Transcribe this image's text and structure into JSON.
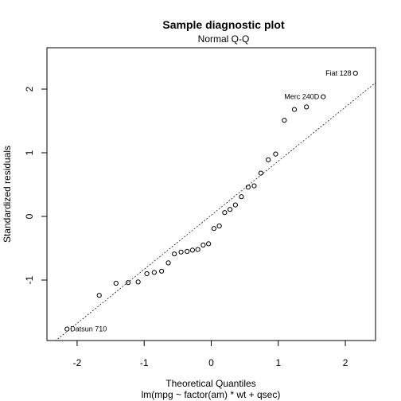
{
  "chart_data": {
    "type": "scatter",
    "title": "Sample diagnostic plot",
    "subtitle": "Normal Q-Q",
    "xlabel": "Theoretical Quantiles",
    "xlabel2": "lm(mpg ~ factor(am) * wt + qsec)",
    "ylabel": "Standardized residuals",
    "xlim": [
      -2.45,
      2.45
    ],
    "ylim": [
      -1.95,
      2.65
    ],
    "xticks": [
      "-2",
      "-1",
      "0",
      "1",
      "2"
    ],
    "xtick_values": [
      -2,
      -1,
      0,
      1,
      2
    ],
    "yticks": [
      "-1",
      "0",
      "1",
      "2"
    ],
    "ytick_values": [
      -1,
      0,
      1,
      2
    ],
    "grid": false,
    "reference_line": {
      "style": "dotted",
      "x": [
        -2.4,
        2.45
      ],
      "y": [
        -2.02,
        2.1
      ]
    },
    "points": [
      {
        "x": -2.15,
        "y": -1.77
      },
      {
        "x": -1.67,
        "y": -1.24
      },
      {
        "x": -1.42,
        "y": -1.05
      },
      {
        "x": -1.24,
        "y": -1.04
      },
      {
        "x": -1.09,
        "y": -1.03
      },
      {
        "x": -0.96,
        "y": -0.9
      },
      {
        "x": -0.85,
        "y": -0.88
      },
      {
        "x": -0.74,
        "y": -0.86
      },
      {
        "x": -0.64,
        "y": -0.73
      },
      {
        "x": -0.55,
        "y": -0.59
      },
      {
        "x": -0.45,
        "y": -0.56
      },
      {
        "x": -0.36,
        "y": -0.55
      },
      {
        "x": -0.28,
        "y": -0.53
      },
      {
        "x": -0.2,
        "y": -0.52
      },
      {
        "x": -0.12,
        "y": -0.45
      },
      {
        "x": -0.04,
        "y": -0.43
      },
      {
        "x": 0.04,
        "y": -0.19
      },
      {
        "x": 0.12,
        "y": -0.15
      },
      {
        "x": 0.2,
        "y": 0.06
      },
      {
        "x": 0.28,
        "y": 0.11
      },
      {
        "x": 0.36,
        "y": 0.18
      },
      {
        "x": 0.45,
        "y": 0.31
      },
      {
        "x": 0.55,
        "y": 0.46
      },
      {
        "x": 0.64,
        "y": 0.48
      },
      {
        "x": 0.74,
        "y": 0.68
      },
      {
        "x": 0.85,
        "y": 0.89
      },
      {
        "x": 0.96,
        "y": 0.98
      },
      {
        "x": 1.09,
        "y": 1.51
      },
      {
        "x": 1.24,
        "y": 1.68
      },
      {
        "x": 1.42,
        "y": 1.72
      },
      {
        "x": 1.67,
        "y": 1.88
      },
      {
        "x": 2.15,
        "y": 2.25
      }
    ],
    "annotations": [
      {
        "label": "Fiat 128",
        "x": 2.15,
        "y": 2.25,
        "side": "left"
      },
      {
        "label": "Merc 240D",
        "x": 1.67,
        "y": 1.88,
        "side": "left"
      },
      {
        "label": "Datsun 710",
        "x": -2.15,
        "y": -1.77,
        "side": "right"
      }
    ]
  }
}
